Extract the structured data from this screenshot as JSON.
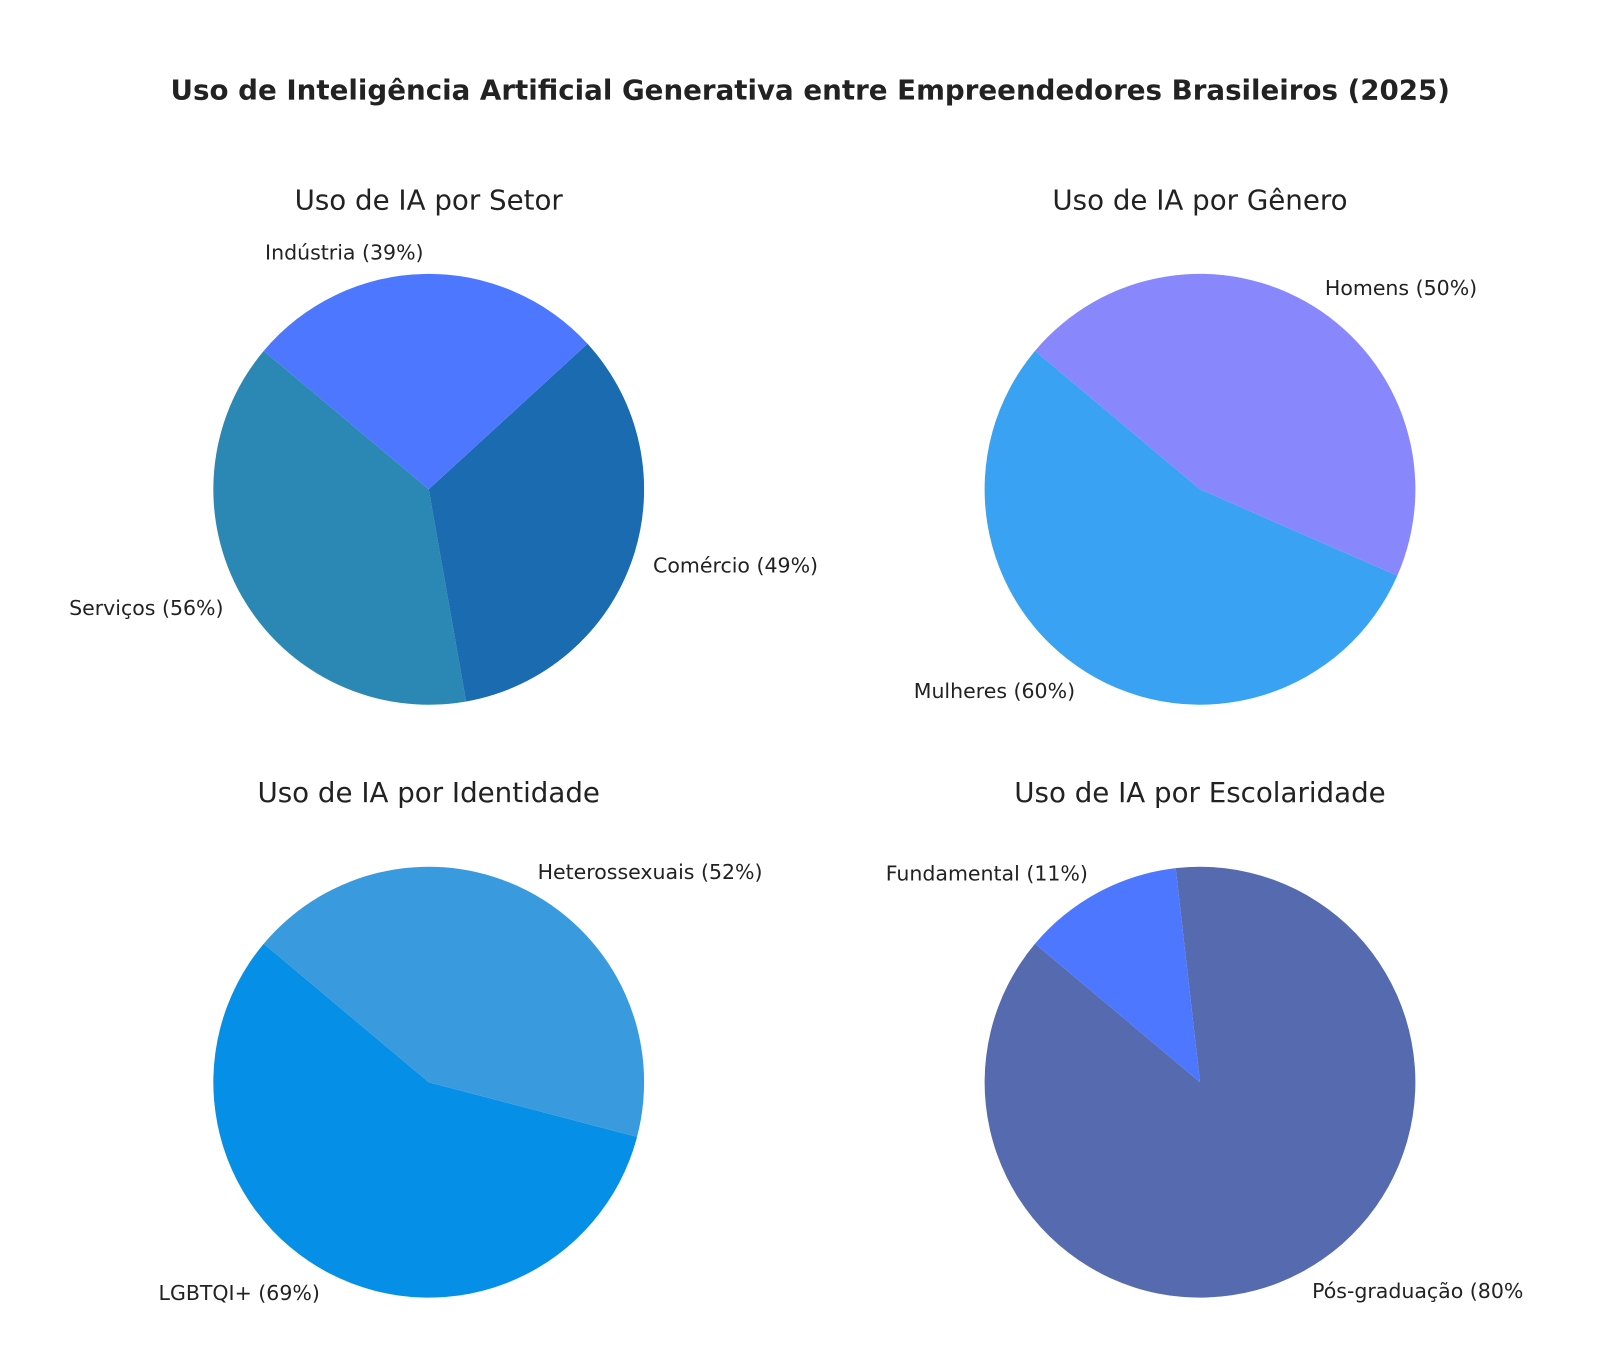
{
  "chart_data": {
    "type": "pie",
    "title": "Uso de Inteligência Artificial Generativa entre Empreendedores Brasileiros (2025)",
    "start_angle_deg": 140,
    "charts": [
      {
        "title": "Uso de IA por Setor",
        "categories": [
          "Serviços",
          "Comércio",
          "Indústria"
        ],
        "values": [
          56,
          49,
          39
        ],
        "labels": [
          "Serviços (56%)",
          "Comércio (49%)",
          "Indústria (39%)"
        ],
        "colors": [
          "#2b87b3",
          "#1a6baf",
          "#4d77ff"
        ]
      },
      {
        "title": "Uso de IA por Gênero",
        "categories": [
          "Mulheres",
          "Homens"
        ],
        "values": [
          60,
          50
        ],
        "labels": [
          "Mulheres (60%)",
          "Homens (50%)"
        ],
        "colors": [
          "#39a2f2",
          "#8888fc"
        ]
      },
      {
        "title": "Uso de IA por Identidade",
        "categories": [
          "LGBTQI+",
          "Heterossexuais"
        ],
        "values": [
          69,
          52
        ],
        "labels": [
          "LGBTQI+ (69%)",
          "Heterossexuais (52%)"
        ],
        "colors": [
          "#068fe6",
          "#3a9ade"
        ]
      },
      {
        "title": "Uso de IA por Escolaridade",
        "categories": [
          "Pós-graduação",
          "Fundamental"
        ],
        "values": [
          80,
          11
        ],
        "labels": [
          "Pós-graduação (80%",
          "Fundamental (11%)"
        ],
        "colors": [
          "#566ab0",
          "#4d77ff"
        ]
      }
    ]
  }
}
